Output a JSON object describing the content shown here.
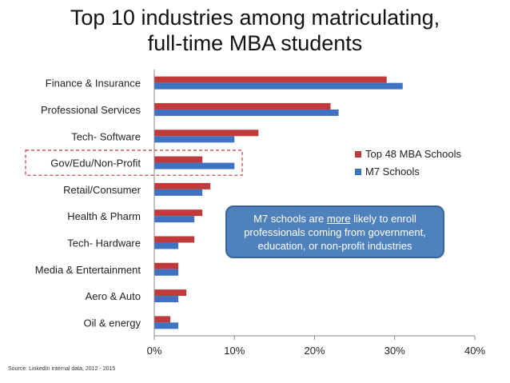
{
  "title_line1": "Top 10 industries among matriculating,",
  "title_line2": "full-time MBA students",
  "callout": {
    "before": "M7 schools are ",
    "emph": "more",
    "after": " likely to enroll professionals coming from government, education, or non-profit industries"
  },
  "source": "Source: LinkedIn internal data, 2012 - 2015",
  "highlighted_category": "Gov/Edu/Non-Profit",
  "chart_data": {
    "type": "bar",
    "orientation": "horizontal",
    "categories": [
      "Finance & Insurance",
      "Professional Services",
      "Tech- Software",
      "Gov/Edu/Non-Profit",
      "Retail/Consumer",
      "Health & Pharm",
      "Tech- Hardware",
      "Media & Entertainment",
      "Aero & Auto",
      "Oil & energy"
    ],
    "series": [
      {
        "name": "Top 48 MBA Schools",
        "color": "#c0393b",
        "values": [
          29,
          22,
          13,
          6,
          7,
          6,
          5,
          3,
          4,
          2
        ]
      },
      {
        "name": "M7 Schools",
        "color": "#3f72c0",
        "values": [
          31,
          23,
          10,
          10,
          6,
          5,
          3,
          3,
          3,
          3
        ]
      }
    ],
    "xlim": [
      0,
      40
    ],
    "xticks": [
      "0%",
      "10%",
      "20%",
      "30%",
      "40%"
    ],
    "legend": "right",
    "grid": false
  }
}
